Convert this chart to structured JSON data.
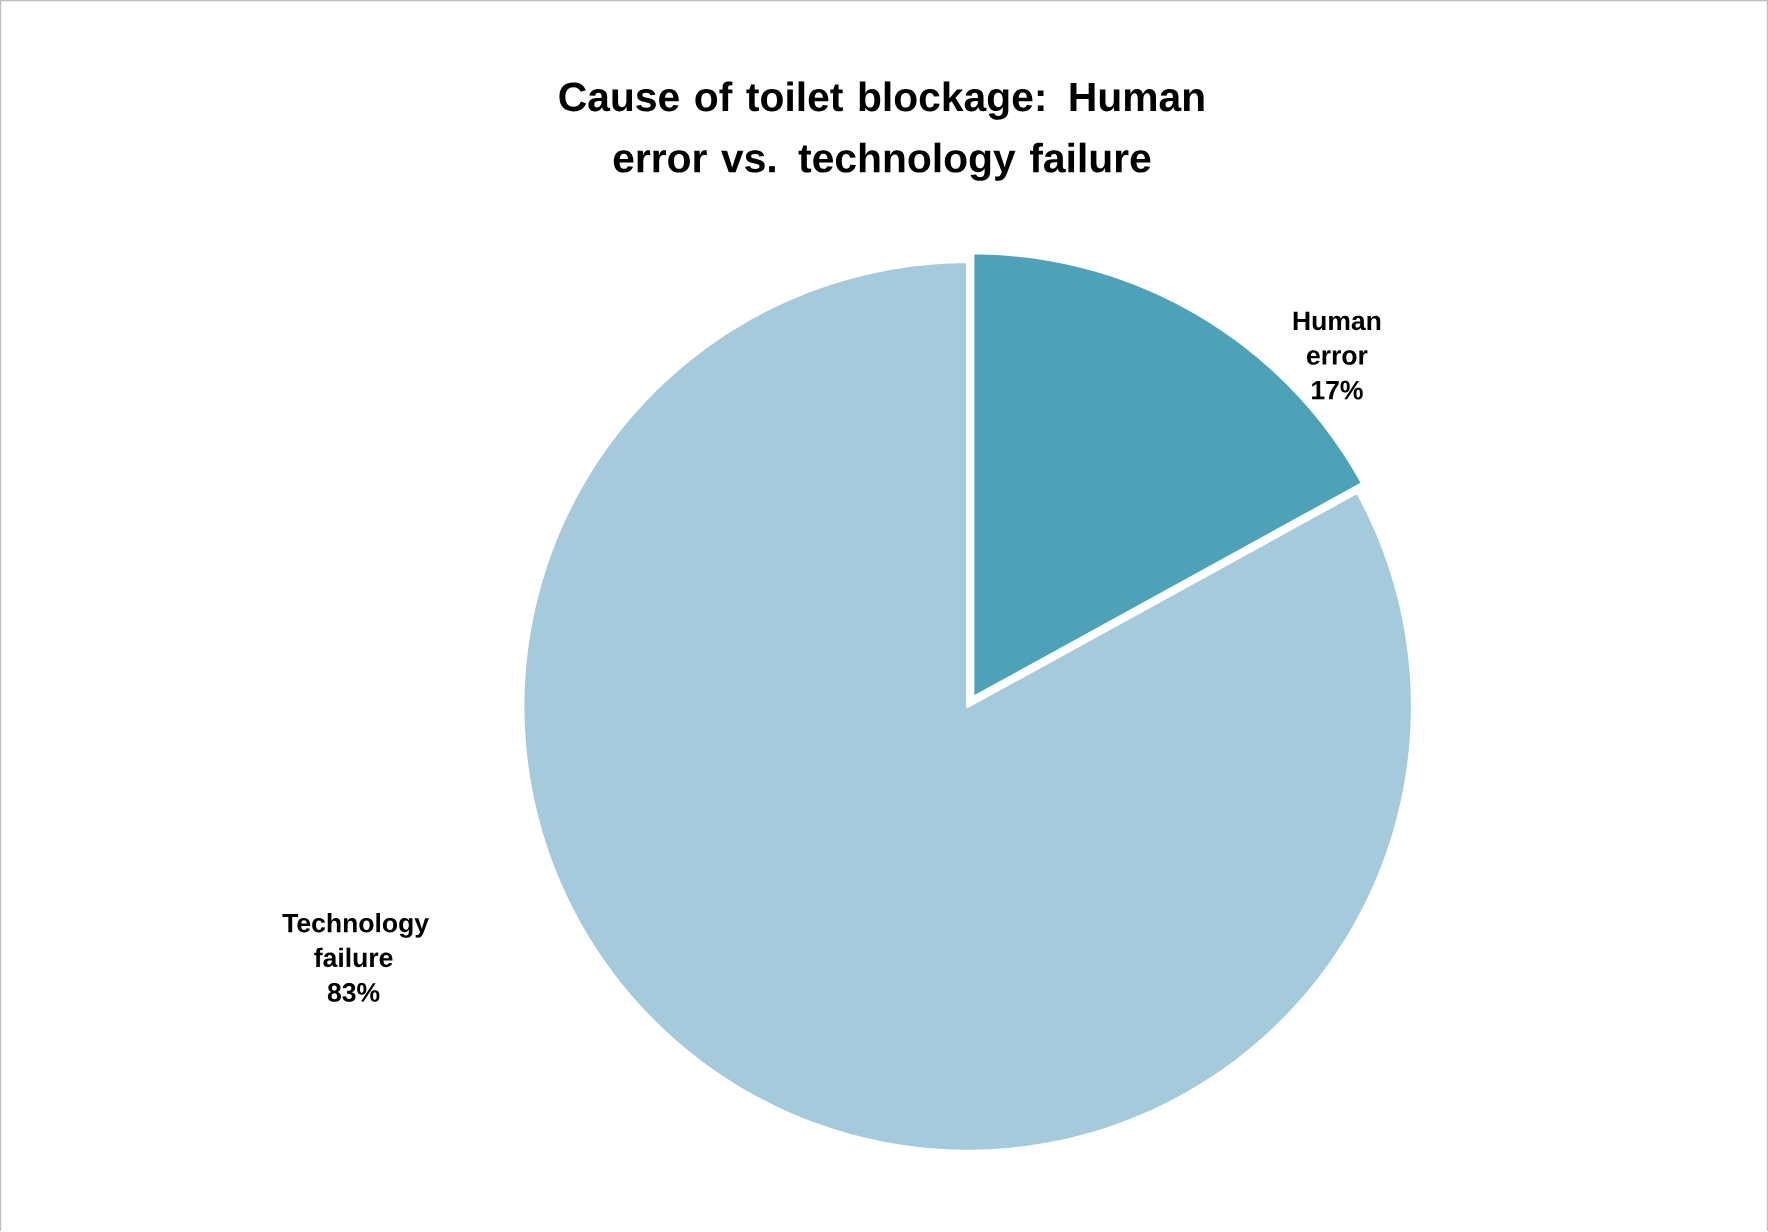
{
  "chart_data": {
    "type": "pie",
    "title": "Cause of toilet blockage: Human error vs. technology failure",
    "categories": [
      "Human error",
      "Technology failure"
    ],
    "values": [
      17,
      83
    ],
    "value_labels": [
      "17%",
      "83%"
    ],
    "colors": [
      "#4ea2b8",
      "#a5cadb"
    ]
  }
}
